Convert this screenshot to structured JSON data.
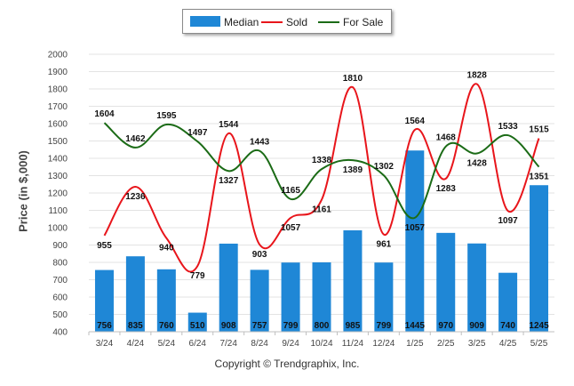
{
  "chart_data": {
    "type": "bar",
    "categories": [
      "3/24",
      "4/24",
      "5/24",
      "6/24",
      "7/24",
      "8/24",
      "9/24",
      "10/24",
      "11/24",
      "12/24",
      "1/25",
      "2/25",
      "3/25",
      "4/25",
      "5/25"
    ],
    "series": [
      {
        "name": "Median",
        "type": "bar",
        "color": "#1f87d6",
        "values": [
          756,
          835,
          760,
          510,
          908,
          757,
          799,
          800,
          985,
          799,
          1445,
          970,
          909,
          740,
          1245
        ]
      },
      {
        "name": "Sold",
        "type": "line",
        "color": "#e8151b",
        "values": [
          955,
          1236,
          940,
          779,
          1544,
          903,
          1057,
          1161,
          1810,
          961,
          1564,
          1283,
          1828,
          1097,
          1515
        ]
      },
      {
        "name": "For Sale",
        "type": "line",
        "color": "#1b6b16",
        "values": [
          1604,
          1462,
          1595,
          1497,
          1327,
          1443,
          1165,
          1338,
          1389,
          1302,
          1057,
          1468,
          1428,
          1533,
          1351
        ]
      }
    ],
    "ylabel": "Price (in $,000)",
    "xlabel": "",
    "ylim": [
      400,
      2000
    ],
    "yticks": [
      400,
      500,
      600,
      700,
      800,
      900,
      1000,
      1100,
      1200,
      1300,
      1400,
      1500,
      1600,
      1700,
      1800,
      1900,
      2000
    ],
    "grid": true,
    "legend": "top-center"
  },
  "legend": {
    "median": "Median",
    "sold": "Sold",
    "for_sale": "For Sale"
  },
  "footer": {
    "copyright": "Copyright © Trendgraphix, Inc."
  }
}
